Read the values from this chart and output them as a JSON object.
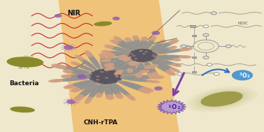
{
  "bg_color": "#f0e8cc",
  "beam_color": "#f0b050",
  "beam_alpha": 0.65,
  "nir_label": "NIR",
  "nir_color": "#111111",
  "bacteria_label": "Bacteria",
  "bacteria_body_color": "#8a8a30",
  "bacteria_body_dark": "#6a6a20",
  "cnh_label": "CNH-rTPA",
  "cnh_label_color": "#111111",
  "singlet_o2_label": "1O2",
  "triplet_o2_label": "3O2",
  "singlet_burst_color": "#c0a0e0",
  "singlet_text_color": "#4020a0",
  "triplet_color": "#4090d0",
  "arrow_color": "#8040a0",
  "nanohorn_body": "#909090",
  "nanohorn_dark": "#505060",
  "nanohorn_tip": "#d4a080",
  "dot_color": "#9060b0",
  "nir_wave_color": "#cc2222",
  "blue_arrow_color": "#3070c0",
  "chem_line_color": "#888888",
  "chem_node_color": "#aaaaaa",
  "chem_ring_color": "#888888"
}
